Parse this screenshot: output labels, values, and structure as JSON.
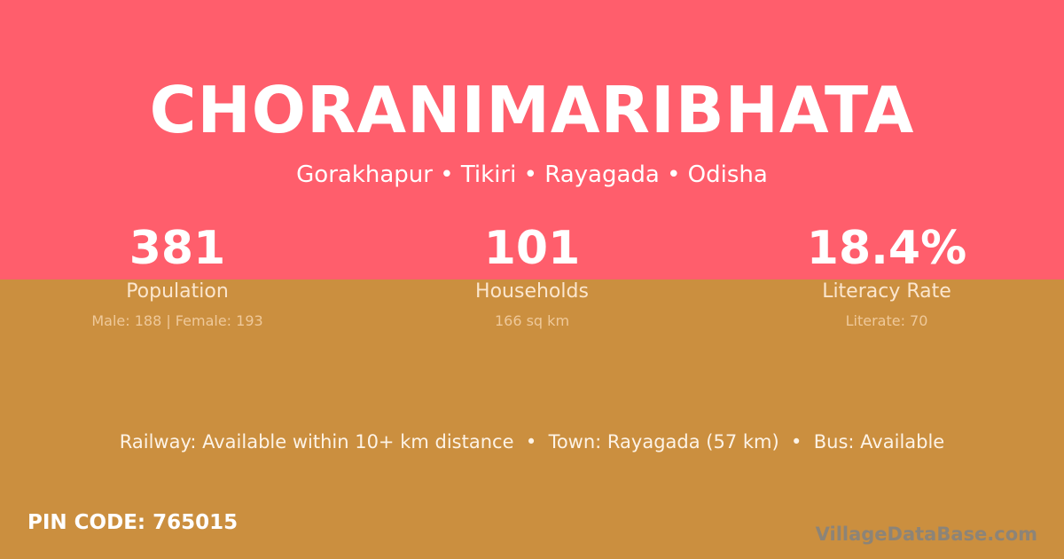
{
  "colors": {
    "top_background": "#FF5E6C",
    "bottom_background": "#CB8F3F"
  },
  "village": {
    "name": "CHORANIMARIBHATA",
    "location": "Gorakhapur • Tikiri • Rayagada • Odisha"
  },
  "stats": [
    {
      "value": "381",
      "label": "Population",
      "detail": "Male: 188 | Female: 193"
    },
    {
      "value": "101",
      "label": "Households",
      "detail": "166 sq km"
    },
    {
      "value": "18.4%",
      "label": "Literacy Rate",
      "detail": "Literate: 70"
    }
  ],
  "connectivity": "Railway: Available within 10+ km distance  •  Town: Rayagada (57 km)  •  Bus: Available",
  "pin_code": "PIN CODE: 765015",
  "brand": "VillageDataBase.com"
}
